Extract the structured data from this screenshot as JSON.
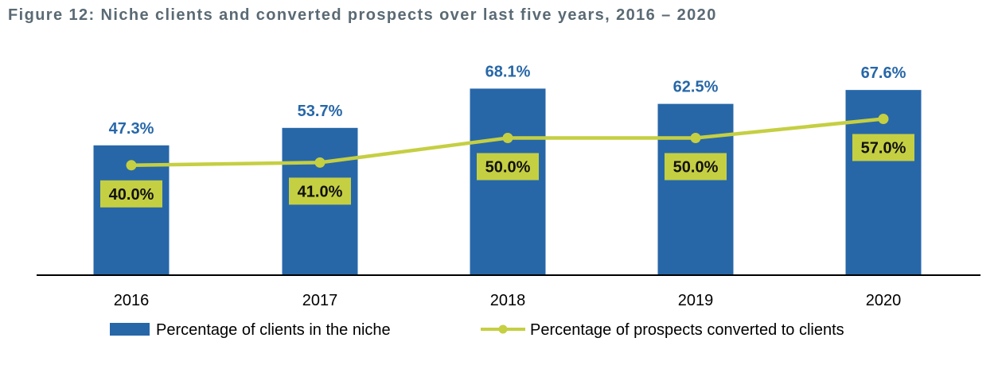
{
  "title": "Figure 12: Niche clients and converted prospects over last five years, 2016 – 2020",
  "colors": {
    "bar": "#2767A8",
    "line": "#C5CF42",
    "label_box": "#C5CF42",
    "bar_label": "#2767A8",
    "axis": "#000000"
  },
  "chart_data": {
    "type": "bar",
    "categories": [
      "2016",
      "2017",
      "2018",
      "2019",
      "2020"
    ],
    "series": [
      {
        "name": "Percentage of clients in the niche",
        "type": "bar",
        "values": [
          47.3,
          53.7,
          68.1,
          62.5,
          67.6
        ],
        "labels": [
          "47.3%",
          "53.7%",
          "68.1%",
          "62.5%",
          "67.6%"
        ]
      },
      {
        "name": "Percentage of prospects converted to clients",
        "type": "line",
        "values": [
          40.0,
          41.0,
          50.0,
          50.0,
          57.0
        ],
        "labels": [
          "40.0%",
          "41.0%",
          "50.0%",
          "50.0%",
          "57.0%"
        ]
      }
    ],
    "ylim": [
      0,
      100
    ],
    "grid": false,
    "legend": "bottom"
  }
}
